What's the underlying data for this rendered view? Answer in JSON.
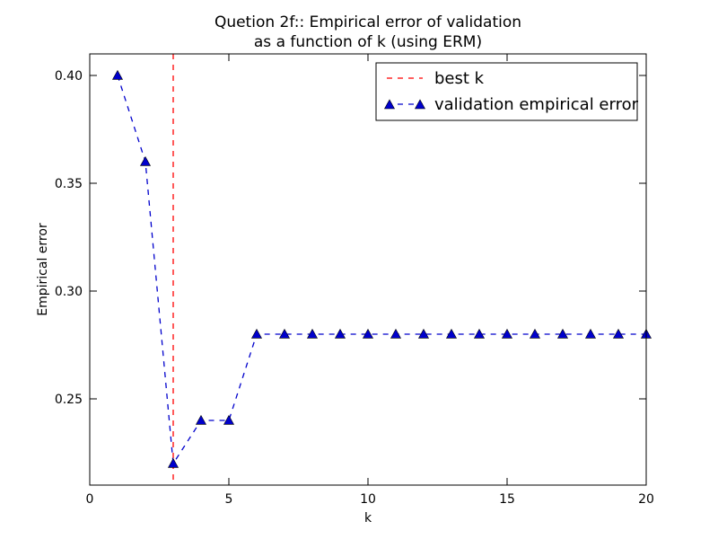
{
  "chart_data": {
    "type": "line",
    "title_line1": "Quetion 2f:: Empirical error of validation",
    "title_line2": "as a function of k (using ERM)",
    "xlabel": "k",
    "ylabel": "Empirical error",
    "xlim": [
      0,
      20
    ],
    "ylim": [
      0.21,
      0.41
    ],
    "xticks": [
      0,
      5,
      10,
      15,
      20
    ],
    "xtick_labels": [
      "0",
      "5",
      "10",
      "15",
      "20"
    ],
    "yticks": [
      0.25,
      0.3,
      0.35,
      0.4
    ],
    "ytick_labels": [
      "0.25",
      "0.30",
      "0.35",
      "0.40"
    ],
    "grid": false,
    "legend_position": "top-right",
    "best_k": {
      "name": "best k",
      "x": 3,
      "color": "#ff0000",
      "style": "dashed"
    },
    "series": [
      {
        "name": "validation empirical error",
        "color": "#0000cc",
        "marker": "triangle-up",
        "style": "dashed",
        "x": [
          1,
          2,
          3,
          4,
          5,
          6,
          7,
          8,
          9,
          10,
          11,
          12,
          13,
          14,
          15,
          16,
          17,
          18,
          19,
          20
        ],
        "y": [
          0.4,
          0.36,
          0.22,
          0.24,
          0.24,
          0.28,
          0.28,
          0.28,
          0.28,
          0.28,
          0.28,
          0.28,
          0.28,
          0.28,
          0.28,
          0.28,
          0.28,
          0.28,
          0.28,
          0.28
        ]
      }
    ]
  }
}
